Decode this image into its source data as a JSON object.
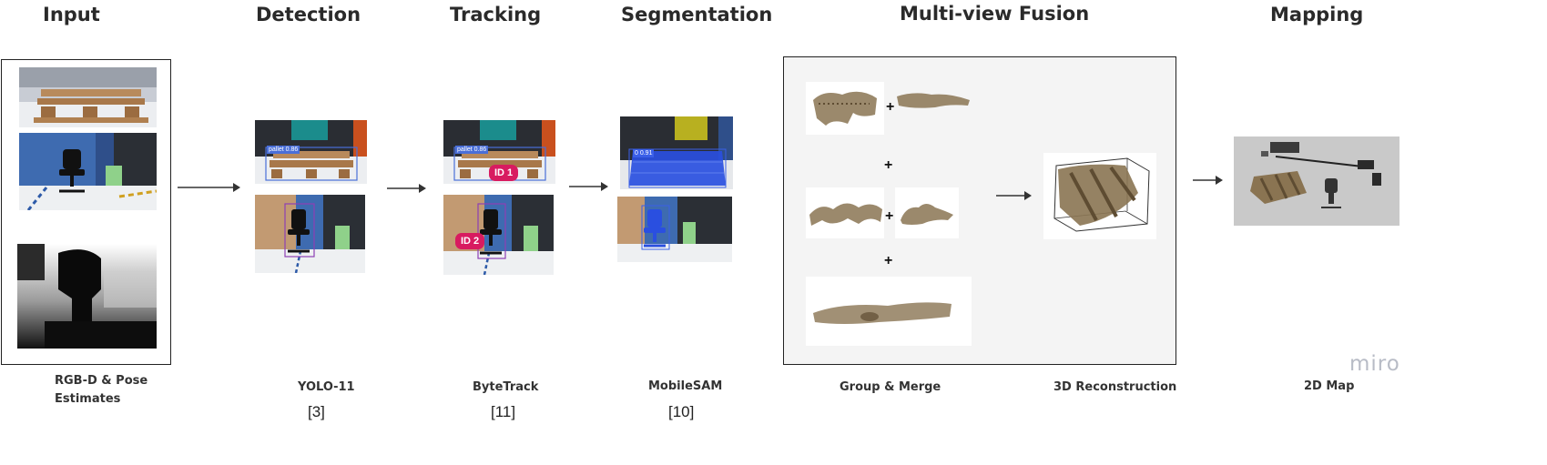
{
  "stages": {
    "input": {
      "title": "Input",
      "caption": "RGB-D & Pose Estimates"
    },
    "detection": {
      "title": "Detection",
      "caption": "YOLO-11",
      "ref": "[3]",
      "labels": [
        "pallet 0.86"
      ]
    },
    "tracking": {
      "title": "Tracking",
      "caption": "ByteTrack",
      "ref": "[11]",
      "labels": [
        "pallet 0.86"
      ],
      "ids": [
        "ID 1",
        "ID 2"
      ]
    },
    "segmentation": {
      "title": "Segmentation",
      "caption": "MobileSAM",
      "ref": "[10]",
      "labels": [
        "0 0.91"
      ]
    },
    "fusion": {
      "title": "Multi-view Fusion",
      "caption_left": "Group & Merge",
      "caption_right": "3D Reconstruction",
      "plus_symbol": "+"
    },
    "mapping": {
      "title": "Mapping",
      "caption": "2D Map"
    }
  },
  "brand": "miro",
  "colors": {
    "arrow": "#333333",
    "panel_border": "#222222",
    "fusion_bg": "#f4f4f4",
    "id_tag": "#d81b60",
    "detect_box_pallet": "#4a6fd8",
    "detect_box_chair": "#8e3fb5",
    "seg_fill": "#2a4fe0",
    "pointcloud": "#8a7452",
    "wall_blue": "#3e6bb0",
    "wall_teal": "#1b8c8c",
    "wall_tan": "#c29a72",
    "board_green": "#8fd18a",
    "floor": "#e9ebee"
  },
  "icons": [
    "arrow-right-icon",
    "plus-icon",
    "pallet-icon",
    "office-chair-icon",
    "depth-map-icon",
    "point-cloud-icon",
    "bounding-box-3d-icon",
    "occupancy-map-icon"
  ]
}
